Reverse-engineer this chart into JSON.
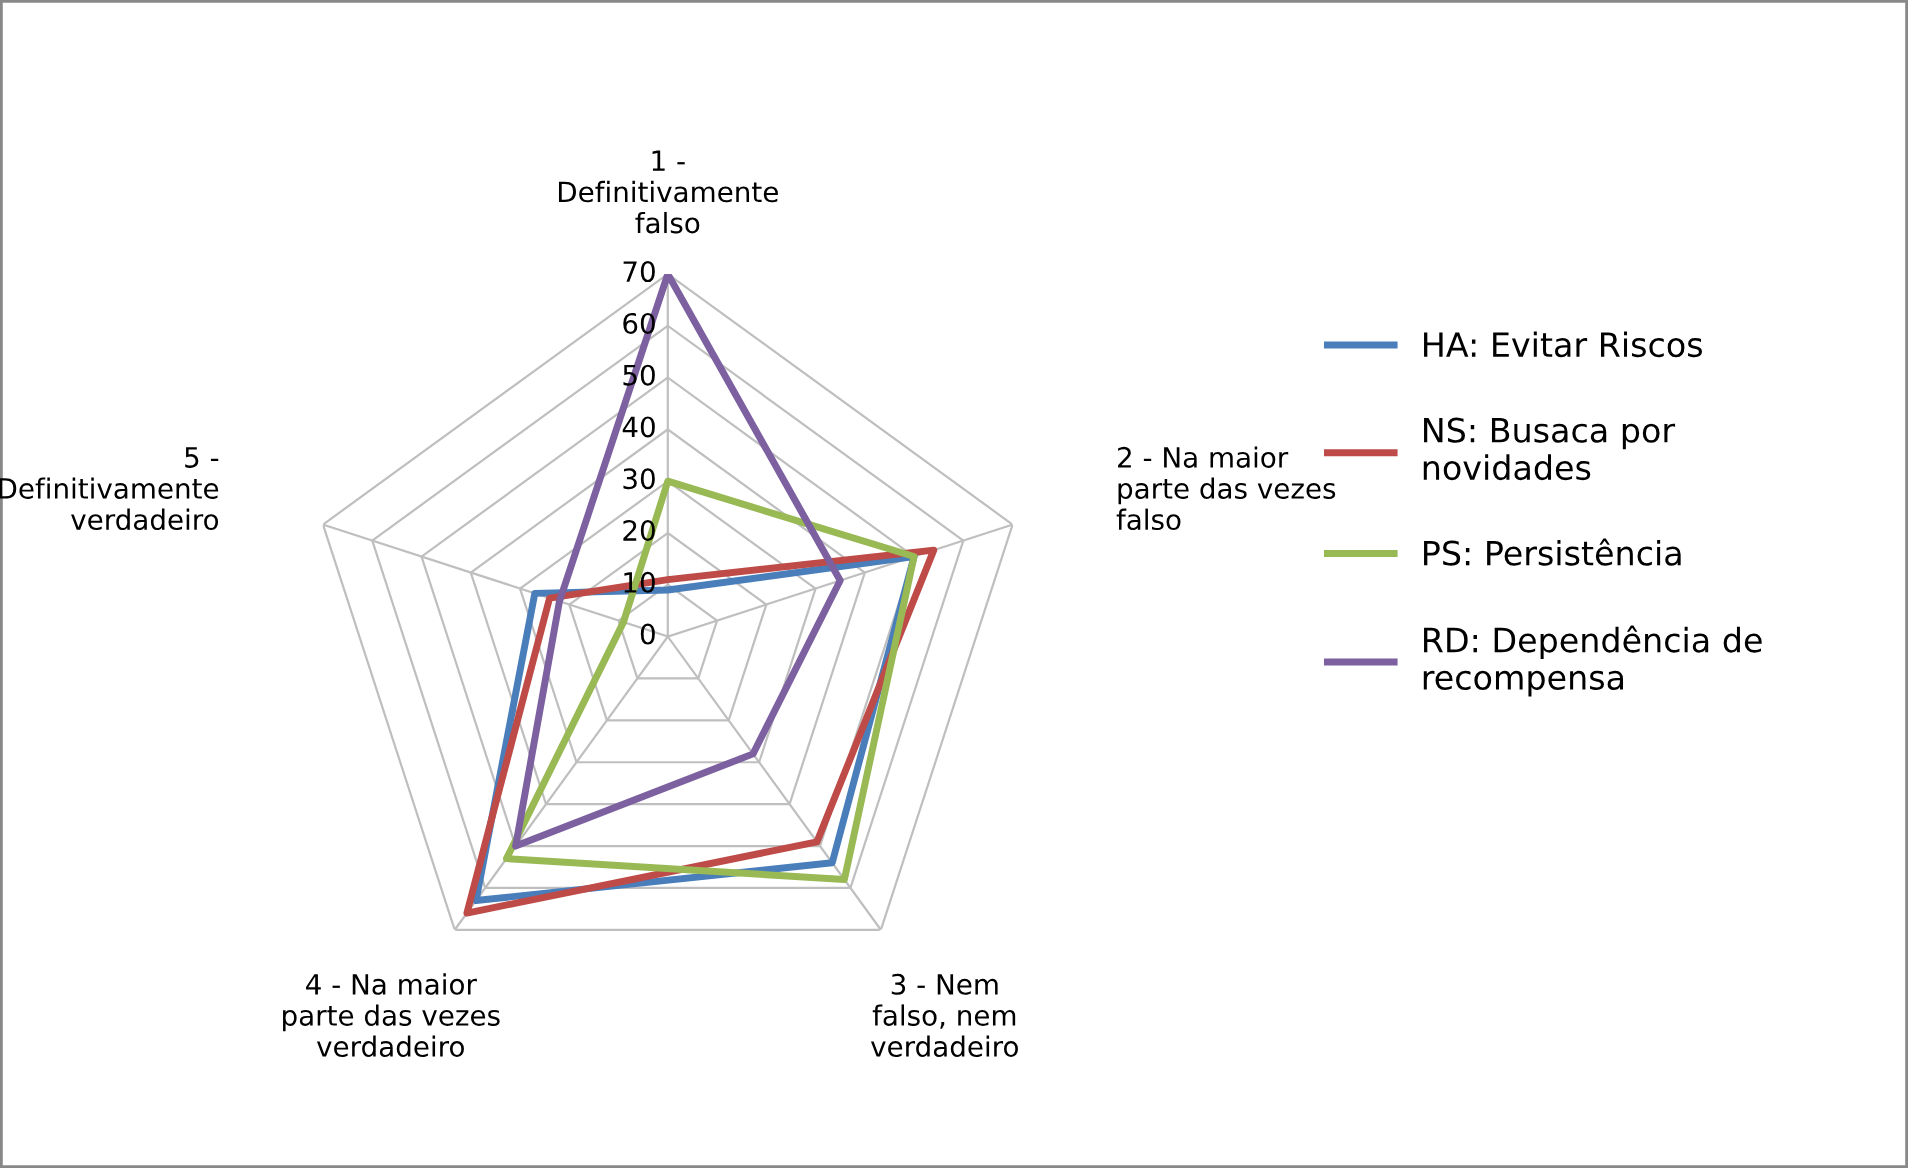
{
  "chart_data": {
    "type": "radar",
    "categories": [
      "1 -\nDefinitivamente\nfalso",
      "2 - Na maior\nparte das vezes\nfalso",
      "3 - Nem\nfalso, nem\nverdadeiro",
      "4 - Na maior\nparte das vezes\nverdadeiro",
      "5 -\nDefinitivamente\nverdadeiro"
    ],
    "series": [
      {
        "name": "HA: Evitar Riscos",
        "color": "#4a7ebb",
        "values": [
          9,
          50,
          54,
          63,
          27
        ]
      },
      {
        "name": "NS: Busaca por novidades",
        "color": "#be4b48",
        "values": [
          11,
          54,
          49,
          66,
          24
        ]
      },
      {
        "name": "PS: Persistência",
        "color": "#98b954",
        "values": [
          30,
          50,
          58,
          53,
          9
        ]
      },
      {
        "name": "RD: Dependência de recompensa",
        "color": "#7d60a0",
        "values": [
          70,
          35,
          28,
          50,
          22
        ]
      }
    ],
    "ylim": [
      0,
      70
    ],
    "yticks": [
      0,
      10,
      20,
      30,
      40,
      50,
      60,
      70
    ],
    "grid": true,
    "legend": "right",
    "marker": "none",
    "line_style": "solid"
  }
}
